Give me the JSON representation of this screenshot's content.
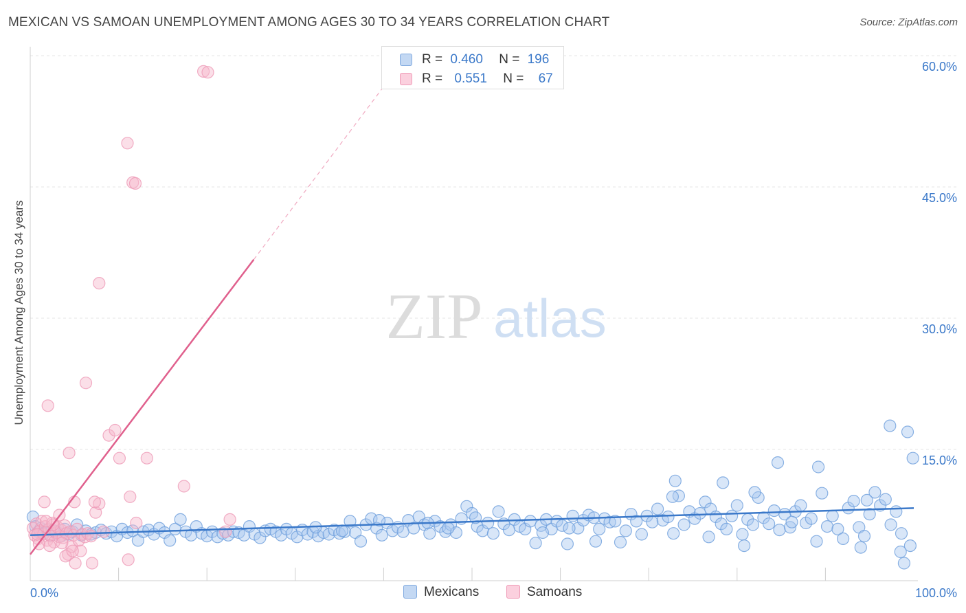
{
  "title": "MEXICAN VS SAMOAN UNEMPLOYMENT AMONG AGES 30 TO 34 YEARS CORRELATION CHART",
  "source": "Source: ZipAtlas.com",
  "watermark": {
    "zip": "ZIP",
    "atlas": "atlas"
  },
  "colors": {
    "blue": "#3a78c9",
    "blue_fill": "#a9c8ef",
    "pink": "#e0608d",
    "pink_fill": "#f6b7cb",
    "grid": "#e4e4e4"
  },
  "stats": [
    {
      "r_label": "R =",
      "r_value": "0.460",
      "n_label": "N =",
      "n_value": "196"
    },
    {
      "r_label": "R =",
      "r_value": "0.551",
      "n_label": "N =",
      "n_value": "67"
    }
  ],
  "legend": [
    "Mexicans",
    "Samoans"
  ],
  "chart_data": {
    "type": "scatter",
    "title": "MEXICAN VS SAMOAN UNEMPLOYMENT AMONG AGES 30 TO 34 YEARS CORRELATION CHART",
    "xlabel": "",
    "ylabel": "Unemployment Among Ages 30 to 34 years",
    "xlim": [
      0,
      100
    ],
    "ylim": [
      0,
      63
    ],
    "x_tick_labels": [
      "0.0%",
      "100.0%"
    ],
    "y_tick_values": [
      15,
      30,
      45,
      60
    ],
    "y_tick_labels": [
      "15.0%",
      "30.0%",
      "45.0%",
      "60.0%"
    ],
    "series": [
      {
        "name": "Mexicans",
        "color": "#3a78c9",
        "r": 0.46,
        "n": 196,
        "trend": {
          "x0": 0,
          "y0": 5.2,
          "x1": 100,
          "y1": 8.3
        },
        "points": [
          [
            0.3,
            7.3
          ],
          [
            0.6,
            6.2
          ],
          [
            0.9,
            5.6
          ],
          [
            1.2,
            6.0
          ],
          [
            1.5,
            5.4
          ],
          [
            1.9,
            5.8
          ],
          [
            2.3,
            5.2
          ],
          [
            2.7,
            5.7
          ],
          [
            3.1,
            5.5
          ],
          [
            3.5,
            5.1
          ],
          [
            3.9,
            5.9
          ],
          [
            4.3,
            5.3
          ],
          [
            4.8,
            5.6
          ],
          [
            5.3,
            6.4
          ],
          [
            5.8,
            5.2
          ],
          [
            6.3,
            5.7
          ],
          [
            6.9,
            5.3
          ],
          [
            7.4,
            5.5
          ],
          [
            8.0,
            5.8
          ],
          [
            8.6,
            5.4
          ],
          [
            9.2,
            5.6
          ],
          [
            9.8,
            5.1
          ],
          [
            10.4,
            5.9
          ],
          [
            11.0,
            5.5
          ],
          [
            11.6,
            5.7
          ],
          [
            12.2,
            4.6
          ],
          [
            12.8,
            5.6
          ],
          [
            13.4,
            5.8
          ],
          [
            14.0,
            5.3
          ],
          [
            14.6,
            6.0
          ],
          [
            15.2,
            5.5
          ],
          [
            15.8,
            4.6
          ],
          [
            16.4,
            5.9
          ],
          [
            17.0,
            7.0
          ],
          [
            17.6,
            5.6
          ],
          [
            18.2,
            5.2
          ],
          [
            18.8,
            6.2
          ],
          [
            19.4,
            5.4
          ],
          [
            20.0,
            5.1
          ],
          [
            20.6,
            5.6
          ],
          [
            21.2,
            5.0
          ],
          [
            21.8,
            5.4
          ],
          [
            22.4,
            5.2
          ],
          [
            23.0,
            5.6
          ],
          [
            23.6,
            5.5
          ],
          [
            24.2,
            5.2
          ],
          [
            24.8,
            6.2
          ],
          [
            25.4,
            5.3
          ],
          [
            26.0,
            4.9
          ],
          [
            26.6,
            5.7
          ],
          [
            27.2,
            5.9
          ],
          [
            27.8,
            5.6
          ],
          [
            28.4,
            5.2
          ],
          [
            29.0,
            5.9
          ],
          [
            29.6,
            5.4
          ],
          [
            30.2,
            5.0
          ],
          [
            30.8,
            5.8
          ],
          [
            31.4,
            5.3
          ],
          [
            32.0,
            5.6
          ],
          [
            32.6,
            5.1
          ],
          [
            33.2,
            5.5
          ],
          [
            33.8,
            5.3
          ],
          [
            34.4,
            5.8
          ],
          [
            35.0,
            5.4
          ],
          [
            35.6,
            5.6
          ],
          [
            36.2,
            6.8
          ],
          [
            36.8,
            5.5
          ],
          [
            37.4,
            4.5
          ],
          [
            38.0,
            6.4
          ],
          [
            38.6,
            7.1
          ],
          [
            39.2,
            6.0
          ],
          [
            39.8,
            5.2
          ],
          [
            40.4,
            6.6
          ],
          [
            41.0,
            5.7
          ],
          [
            41.6,
            6.1
          ],
          [
            42.2,
            5.6
          ],
          [
            42.8,
            6.9
          ],
          [
            43.4,
            6.0
          ],
          [
            44.0,
            7.3
          ],
          [
            44.6,
            6.4
          ],
          [
            45.2,
            5.4
          ],
          [
            45.8,
            6.8
          ],
          [
            46.4,
            6.2
          ],
          [
            47.0,
            5.6
          ],
          [
            47.6,
            6.4
          ],
          [
            48.2,
            5.5
          ],
          [
            48.8,
            7.1
          ],
          [
            49.4,
            8.5
          ],
          [
            50.0,
            7.7
          ],
          [
            50.6,
            6.2
          ],
          [
            51.2,
            5.7
          ],
          [
            51.8,
            6.6
          ],
          [
            52.4,
            5.4
          ],
          [
            53.0,
            7.9
          ],
          [
            53.6,
            6.5
          ],
          [
            54.2,
            5.8
          ],
          [
            54.8,
            7.0
          ],
          [
            55.4,
            6.2
          ],
          [
            56.0,
            5.9
          ],
          [
            56.6,
            6.8
          ],
          [
            57.2,
            4.3
          ],
          [
            57.8,
            6.3
          ],
          [
            58.4,
            7.0
          ],
          [
            59.0,
            5.9
          ],
          [
            59.6,
            6.8
          ],
          [
            60.2,
            6.3
          ],
          [
            60.8,
            4.2
          ],
          [
            61.4,
            7.4
          ],
          [
            62.0,
            6.0
          ],
          [
            62.6,
            6.9
          ],
          [
            63.2,
            7.5
          ],
          [
            63.8,
            7.2
          ],
          [
            64.4,
            5.9
          ],
          [
            65.0,
            7.1
          ],
          [
            65.6,
            6.7
          ],
          [
            66.2,
            6.8
          ],
          [
            66.8,
            4.4
          ],
          [
            67.4,
            5.7
          ],
          [
            68.0,
            7.6
          ],
          [
            68.6,
            6.8
          ],
          [
            69.2,
            5.3
          ],
          [
            69.8,
            7.4
          ],
          [
            70.4,
            6.7
          ],
          [
            71.0,
            8.2
          ],
          [
            71.6,
            6.9
          ],
          [
            72.2,
            7.3
          ],
          [
            72.8,
            5.4
          ],
          [
            73.4,
            9.7
          ],
          [
            74.0,
            6.4
          ],
          [
            74.6,
            7.9
          ],
          [
            75.2,
            7.1
          ],
          [
            75.8,
            7.7
          ],
          [
            76.4,
            9.0
          ],
          [
            77.0,
            8.2
          ],
          [
            77.6,
            7.3
          ],
          [
            78.2,
            6.5
          ],
          [
            78.8,
            5.9
          ],
          [
            79.4,
            7.4
          ],
          [
            80.0,
            8.6
          ],
          [
            80.6,
            5.3
          ],
          [
            81.2,
            7.0
          ],
          [
            81.8,
            6.4
          ],
          [
            82.4,
            9.5
          ],
          [
            83.0,
            7.2
          ],
          [
            83.6,
            6.5
          ],
          [
            84.2,
            8.0
          ],
          [
            84.8,
            5.8
          ],
          [
            85.4,
            7.6
          ],
          [
            86.0,
            6.1
          ],
          [
            86.6,
            7.9
          ],
          [
            87.2,
            8.6
          ],
          [
            87.8,
            6.6
          ],
          [
            88.4,
            7.1
          ],
          [
            89.0,
            4.5
          ],
          [
            89.6,
            10.0
          ],
          [
            90.2,
            6.2
          ],
          [
            90.8,
            7.4
          ],
          [
            91.4,
            5.9
          ],
          [
            92.0,
            4.8
          ],
          [
            92.6,
            8.3
          ],
          [
            93.2,
            9.1
          ],
          [
            93.8,
            6.1
          ],
          [
            94.4,
            5.1
          ],
          [
            95.0,
            7.6
          ],
          [
            95.6,
            10.1
          ],
          [
            96.2,
            8.6
          ],
          [
            96.8,
            9.3
          ],
          [
            97.4,
            6.4
          ],
          [
            98.0,
            7.9
          ],
          [
            98.6,
            5.4
          ],
          [
            73.0,
            11.4
          ],
          [
            78.4,
            11.2
          ],
          [
            82.0,
            10.1
          ],
          [
            84.6,
            13.5
          ],
          [
            89.2,
            13.0
          ],
          [
            97.3,
            17.7
          ],
          [
            99.3,
            17.0
          ],
          [
            99.9,
            14.0
          ],
          [
            99.6,
            4.0
          ],
          [
            98.5,
            3.3
          ],
          [
            98.9,
            2.0
          ],
          [
            76.8,
            5.0
          ],
          [
            80.8,
            4.0
          ],
          [
            94.0,
            3.8
          ],
          [
            64.0,
            4.5
          ],
          [
            50.4,
            7.2
          ],
          [
            45.0,
            6.6
          ],
          [
            39.5,
            6.9
          ],
          [
            35.3,
            5.7
          ],
          [
            32.3,
            6.1
          ],
          [
            47.3,
            6.0
          ],
          [
            58.0,
            5.5
          ],
          [
            61.0,
            6.0
          ],
          [
            72.7,
            9.6
          ],
          [
            86.2,
            6.7
          ],
          [
            94.7,
            9.2
          ]
        ]
      },
      {
        "name": "Samoans",
        "color": "#e0608d",
        "r": 0.551,
        "n": 67,
        "trend": {
          "x0": 0,
          "y0": 3.0,
          "x1": 25.3,
          "y1": 36.7
        },
        "trend_dashed": {
          "x0": 25.3,
          "y0": 36.7,
          "x1": 43,
          "y1": 60.5
        },
        "points": [
          [
            0.3,
            6.0
          ],
          [
            0.5,
            5.2
          ],
          [
            0.7,
            6.5
          ],
          [
            0.9,
            4.8
          ],
          [
            1.1,
            5.7
          ],
          [
            1.3,
            6.8
          ],
          [
            1.5,
            5.3
          ],
          [
            1.7,
            6.2
          ],
          [
            1.9,
            4.6
          ],
          [
            2.1,
            5.9
          ],
          [
            2.3,
            5.1
          ],
          [
            2.5,
            6.6
          ],
          [
            2.7,
            4.4
          ],
          [
            2.9,
            5.5
          ],
          [
            3.1,
            6.1
          ],
          [
            3.3,
            5.0
          ],
          [
            3.5,
            5.8
          ],
          [
            3.7,
            4.9
          ],
          [
            3.9,
            6.3
          ],
          [
            4.1,
            5.4
          ],
          [
            4.3,
            3.0
          ],
          [
            4.5,
            5.6
          ],
          [
            4.7,
            3.9
          ],
          [
            4.9,
            5.2
          ],
          [
            5.1,
            2.0
          ],
          [
            5.3,
            5.9
          ],
          [
            5.5,
            4.6
          ],
          [
            5.7,
            3.4
          ],
          [
            5.9,
            5.3
          ],
          [
            6.2,
            5.0
          ],
          [
            6.5,
            5.4
          ],
          [
            6.9,
            5.1
          ],
          [
            7.4,
            7.8
          ],
          [
            7.8,
            8.8
          ],
          [
            8.3,
            5.6
          ],
          [
            8.9,
            16.6
          ],
          [
            9.6,
            17.2
          ],
          [
            10.1,
            14.0
          ],
          [
            11.1,
            2.4
          ],
          [
            11.3,
            9.6
          ],
          [
            11.6,
            45.5
          ],
          [
            11.9,
            45.4
          ],
          [
            12.0,
            6.6
          ],
          [
            13.2,
            14.0
          ],
          [
            17.4,
            10.8
          ],
          [
            19.6,
            58.2
          ],
          [
            20.1,
            58.1
          ],
          [
            22.1,
            5.6
          ],
          [
            22.6,
            7.0
          ],
          [
            7.3,
            9.0
          ],
          [
            5.0,
            9.0
          ],
          [
            3.3,
            7.5
          ],
          [
            2.6,
            6.4
          ],
          [
            1.6,
            9.0
          ],
          [
            2.0,
            20.0
          ],
          [
            4.4,
            14.6
          ],
          [
            6.3,
            22.6
          ],
          [
            7.8,
            34.0
          ],
          [
            11.0,
            50.0
          ],
          [
            7.0,
            2.0
          ],
          [
            4.0,
            2.8
          ],
          [
            4.8,
            3.4
          ],
          [
            3.6,
            4.3
          ],
          [
            1.0,
            4.2
          ],
          [
            1.8,
            6.8
          ],
          [
            2.2,
            4.0
          ],
          [
            0.8,
            5.3
          ]
        ]
      }
    ]
  }
}
